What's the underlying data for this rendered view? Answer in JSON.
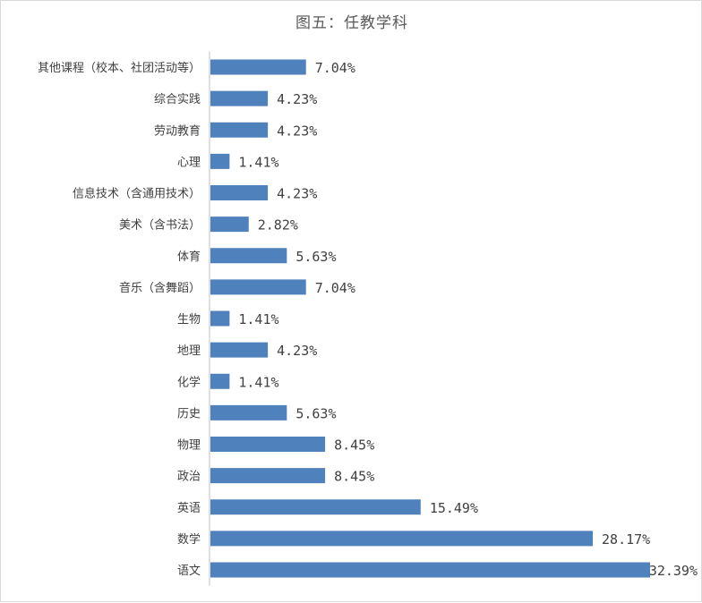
{
  "chart_data": {
    "type": "bar",
    "orientation": "horizontal",
    "title": "图五：任教学科",
    "xlabel": "",
    "ylabel": "",
    "xlim": [
      0,
      32.39
    ],
    "grid": false,
    "legend": "none",
    "bar_color": "#4f81bd",
    "value_suffix": "%",
    "categories": [
      "其他课程（校本、社团活动等）",
      "综合实践",
      "劳动教育",
      "心理",
      "信息技术（含通用技术）",
      "美术（含书法）",
      "体育",
      "音乐（含舞蹈）",
      "生物",
      "地理",
      "化学",
      "历史",
      "物理",
      "政治",
      "英语",
      "数学",
      "语文"
    ],
    "values": [
      7.04,
      4.23,
      4.23,
      1.41,
      4.23,
      2.82,
      5.63,
      7.04,
      1.41,
      4.23,
      1.41,
      5.63,
      8.45,
      8.45,
      15.49,
      28.17,
      32.39
    ],
    "value_labels": [
      "7.04%",
      "4.23%",
      "4.23%",
      "1.41%",
      "4.23%",
      "2.82%",
      "5.63%",
      "7.04%",
      "1.41%",
      "4.23%",
      "1.41%",
      "5.63%",
      "8.45%",
      "8.45%",
      "15.49%",
      "28.17%",
      "32.39%"
    ]
  }
}
